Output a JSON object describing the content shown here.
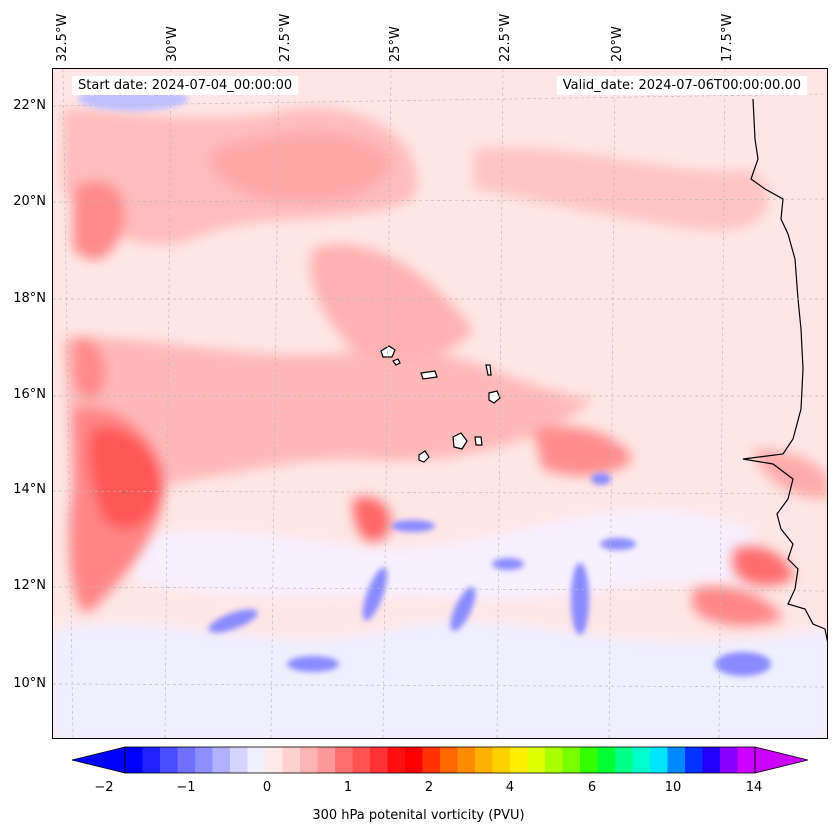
{
  "top_lon_labels": [
    "32.5°W",
    "30°W",
    "27.5°W",
    "25°W",
    "22.5°W",
    "20°W",
    "17.5°W"
  ],
  "left_lat_labels": [
    "22°N",
    "20°N",
    "18°N",
    "16°N",
    "14°N",
    "12°N",
    "10°N"
  ],
  "start_date": "Start date: 2024-07-04_00:00:00",
  "valid_date": "Valid_date: 2024-07-06T00:00:00.00",
  "colorbar": {
    "ticks": [
      "−2",
      "−1",
      "0",
      "1",
      "2",
      "4",
      "6",
      "10",
      "14"
    ],
    "label": "300 hPa potenital vorticity (PVU)",
    "colors": [
      "#0000ff",
      "#2222ff",
      "#4a4aff",
      "#7070ff",
      "#8e8eff",
      "#b0b0ff",
      "#d4d4ff",
      "#efefff",
      "#ffe8e8",
      "#ffd0d0",
      "#ffb4b4",
      "#ff9999",
      "#ff7070",
      "#ff5252",
      "#ff3333",
      "#ff0f0f",
      "#ff0000",
      "#ff3300",
      "#ff6600",
      "#ff8c00",
      "#ffb000",
      "#ffd000",
      "#ffee00",
      "#ddff00",
      "#aaff00",
      "#77ff00",
      "#33ff00",
      "#00ff33",
      "#00ff88",
      "#00ffcc",
      "#00e5ff",
      "#0088ff",
      "#0033ff",
      "#2200ff",
      "#8800ff",
      "#cc00ff"
    ]
  }
}
